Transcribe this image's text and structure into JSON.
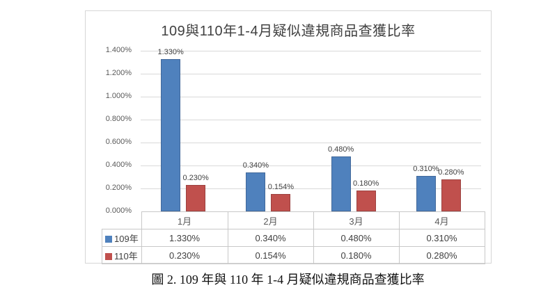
{
  "chart_data": {
    "type": "bar",
    "title": "109與110年1-4月疑似違規商品查獲比率",
    "categories": [
      "1月",
      "2月",
      "3月",
      "4月"
    ],
    "series": [
      {
        "name": "109年",
        "values": [
          1.33,
          0.34,
          0.48,
          0.31
        ],
        "labels": [
          "1.330%",
          "0.340%",
          "0.480%",
          "0.310%"
        ],
        "color": "#4F81BD",
        "border_color": "#41689A"
      },
      {
        "name": "110年",
        "values": [
          0.23,
          0.154,
          0.18,
          0.28
        ],
        "labels": [
          "0.230%",
          "0.154%",
          "0.180%",
          "0.280%"
        ],
        "color": "#C0504D",
        "border_color": "#9C413F"
      }
    ],
    "ylim": [
      0,
      1.4
    ],
    "y_ticks": [
      "0.000%",
      "0.200%",
      "0.400%",
      "0.600%",
      "0.800%",
      "1.000%",
      "1.200%",
      "1.400%"
    ],
    "grid": true,
    "legend_position": "bottom-table",
    "gridline_color": "#D9D9D9",
    "axis_label_color": "#595959"
  },
  "caption": "圖 2. 109 年與 110 年 1-4 月疑似違規商品查獲比率"
}
